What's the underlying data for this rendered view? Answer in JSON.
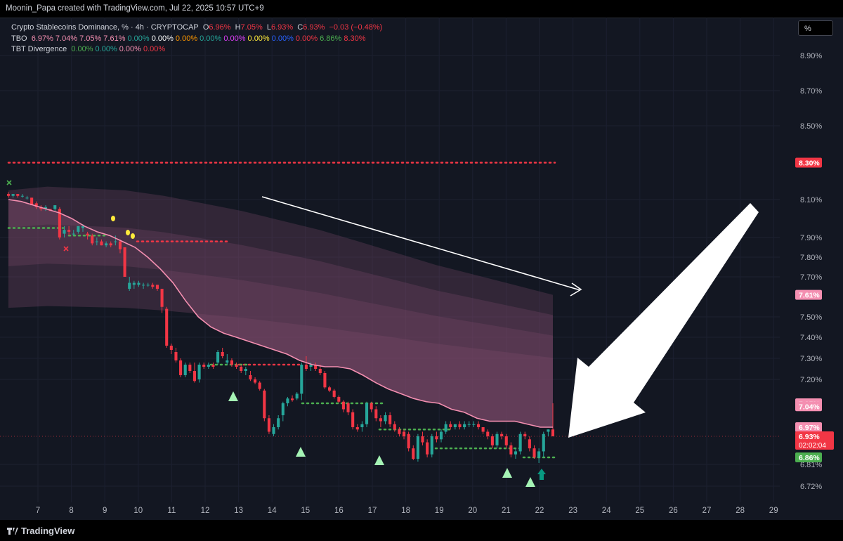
{
  "header": {
    "attribution": "Moonin_Papa created with TradingView.com, Jul 22, 2025 10:57 UTC+9"
  },
  "legend": {
    "symbol": {
      "name": "Crypto Stablecoins Dominance, % · 4h · CRYPTOCAP",
      "o_label": "O",
      "o": "6.96%",
      "h_label": "H",
      "h": "7.05%",
      "l_label": "L",
      "l": "6.93%",
      "c_label": "C",
      "c": "6.93%",
      "change": "−0.03 (−0.48%)"
    },
    "tbo": {
      "name": "TBO",
      "values": [
        {
          "text": "6.97%",
          "color": "#f48fb1"
        },
        {
          "text": "7.04%",
          "color": "#f48fb1"
        },
        {
          "text": "7.05%",
          "color": "#f48fb1"
        },
        {
          "text": "7.61%",
          "color": "#f48fb1"
        },
        {
          "text": "0.00%",
          "color": "#26a69a"
        },
        {
          "text": "0.00%",
          "color": "#ffffff"
        },
        {
          "text": "0.00%",
          "color": "#ff9800"
        },
        {
          "text": "0.00%",
          "color": "#26a69a"
        },
        {
          "text": "0.00%",
          "color": "#e040fb"
        },
        {
          "text": "0.00%",
          "color": "#ffeb3b"
        },
        {
          "text": "0.00%",
          "color": "#2962ff"
        },
        {
          "text": "0.00%",
          "color": "#f23645"
        },
        {
          "text": "6.86%",
          "color": "#4caf50"
        },
        {
          "text": "8.30%",
          "color": "#f23645"
        }
      ]
    },
    "tbt": {
      "name": "TBT Divergence",
      "values": [
        {
          "text": "0.00%",
          "color": "#4caf50"
        },
        {
          "text": "0.00%",
          "color": "#26a69a"
        },
        {
          "text": "0.00%",
          "color": "#f48fb1"
        },
        {
          "text": "0.00%",
          "color": "#f23645"
        }
      ]
    }
  },
  "scale_button": "%",
  "footer": {
    "logo_text": "TradingView"
  },
  "colors": {
    "up": "#26a69a",
    "down": "#f23645",
    "ma": "#f48fb1",
    "cloud": "#7b4a6a",
    "bg": "#131722"
  },
  "chart_data": {
    "type": "candlestick",
    "title": "Crypto Stablecoins Dominance, % · 4h · CRYPTOCAP",
    "y_unit": "%",
    "y_ticks": [
      8.9,
      8.7,
      8.5,
      8.1,
      7.9,
      7.8,
      7.7,
      7.5,
      7.4,
      7.3,
      7.2,
      6.81,
      6.72
    ],
    "x_ticks": [
      "7",
      "8",
      "9",
      "10",
      "11",
      "12",
      "13",
      "14",
      "15",
      "16",
      "17",
      "18",
      "19",
      "20",
      "21",
      "22",
      "23",
      "24",
      "25",
      "26",
      "27",
      "28",
      "29"
    ],
    "ohlc": [
      [
        8.13,
        8.14,
        8.11,
        8.12
      ],
      [
        8.12,
        8.13,
        8.11,
        8.13
      ],
      [
        8.13,
        8.13,
        8.11,
        8.12
      ],
      [
        8.12,
        8.13,
        8.11,
        8.12
      ],
      [
        8.11,
        8.12,
        8.1,
        8.11
      ],
      [
        8.11,
        8.11,
        8.07,
        8.07
      ],
      [
        8.08,
        8.09,
        8.05,
        8.06
      ],
      [
        8.06,
        8.07,
        8.04,
        8.05
      ],
      [
        8.05,
        8.07,
        8.04,
        8.06
      ],
      [
        8.05,
        8.05,
        8.04,
        8.04
      ],
      [
        8.05,
        8.07,
        8.04,
        8.07
      ],
      [
        8.05,
        8.06,
        7.89,
        7.9
      ],
      [
        7.92,
        7.96,
        7.9,
        7.94
      ],
      [
        7.94,
        7.96,
        7.91,
        7.93
      ],
      [
        7.92,
        7.94,
        7.91,
        7.92
      ],
      [
        7.93,
        7.96,
        7.92,
        7.96
      ],
      [
        7.95,
        7.97,
        7.93,
        7.96
      ],
      [
        7.92,
        7.93,
        7.89,
        7.91
      ],
      [
        7.91,
        7.92,
        7.86,
        7.87
      ],
      [
        7.88,
        7.9,
        7.86,
        7.88
      ],
      [
        7.88,
        7.89,
        7.86,
        7.86
      ],
      [
        7.86,
        7.88,
        7.85,
        7.87
      ],
      [
        7.87,
        7.88,
        7.85,
        7.86
      ],
      [
        7.88,
        7.91,
        7.86,
        7.88
      ],
      [
        7.88,
        7.89,
        7.82,
        7.84
      ],
      [
        7.85,
        7.85,
        7.7,
        7.7
      ],
      [
        7.64,
        7.7,
        7.63,
        7.67
      ],
      [
        7.66,
        7.68,
        7.64,
        7.67
      ],
      [
        7.66,
        7.68,
        7.65,
        7.67
      ],
      [
        7.66,
        7.67,
        7.64,
        7.66
      ],
      [
        7.66,
        7.67,
        7.65,
        7.66
      ],
      [
        7.66,
        7.67,
        7.64,
        7.65
      ],
      [
        7.66,
        7.66,
        7.63,
        7.64
      ],
      [
        7.64,
        7.64,
        7.52,
        7.55
      ],
      [
        7.54,
        7.55,
        7.35,
        7.36
      ],
      [
        7.36,
        7.37,
        7.32,
        7.34
      ],
      [
        7.33,
        7.35,
        7.28,
        7.29
      ],
      [
        7.29,
        7.3,
        7.21,
        7.22
      ],
      [
        7.22,
        7.28,
        7.21,
        7.27
      ],
      [
        7.27,
        7.28,
        7.23,
        7.24
      ],
      [
        7.24,
        7.28,
        7.18,
        7.19
      ],
      [
        7.2,
        7.28,
        7.18,
        7.27
      ],
      [
        7.27,
        7.28,
        7.25,
        7.26
      ],
      [
        7.26,
        7.28,
        7.25,
        7.27
      ],
      [
        7.27,
        7.28,
        7.25,
        7.26
      ],
      [
        7.28,
        7.34,
        7.27,
        7.33
      ],
      [
        7.33,
        7.35,
        7.3,
        7.31
      ],
      [
        7.28,
        7.32,
        7.27,
        7.29
      ],
      [
        7.29,
        7.3,
        7.26,
        7.27
      ],
      [
        7.27,
        7.28,
        7.25,
        7.26
      ],
      [
        7.26,
        7.27,
        7.23,
        7.24
      ],
      [
        7.24,
        7.26,
        7.22,
        7.25
      ],
      [
        7.22,
        7.24,
        7.19,
        7.2
      ],
      [
        7.2,
        7.21,
        7.17,
        7.18
      ],
      [
        7.18,
        7.19,
        7.13,
        7.14
      ],
      [
        7.13,
        7.14,
        6.99,
        7.0
      ],
      [
        7.0,
        7.01,
        6.94,
        6.95
      ],
      [
        6.94,
        6.98,
        6.93,
        6.97
      ],
      [
        6.97,
        7.01,
        6.96,
        7.0
      ],
      [
        7.01,
        7.06,
        6.99,
        7.05
      ],
      [
        7.05,
        7.09,
        7.04,
        7.08
      ],
      [
        7.08,
        7.1,
        7.06,
        7.07
      ],
      [
        7.08,
        7.12,
        7.07,
        7.11
      ],
      [
        7.11,
        7.28,
        7.07,
        7.27
      ],
      [
        7.27,
        7.31,
        7.24,
        7.25
      ],
      [
        7.26,
        7.28,
        7.24,
        7.27
      ],
      [
        7.27,
        7.28,
        7.24,
        7.25
      ],
      [
        7.25,
        7.27,
        7.22,
        7.23
      ],
      [
        7.23,
        7.24,
        7.14,
        7.15
      ],
      [
        7.15,
        7.16,
        7.12,
        7.13
      ],
      [
        7.13,
        7.14,
        7.08,
        7.09
      ],
      [
        7.09,
        7.1,
        7.05,
        7.06
      ],
      [
        7.06,
        7.07,
        7.02,
        7.03
      ],
      [
        7.05,
        7.06,
        7.01,
        7.02
      ],
      [
        7.02,
        7.03,
        6.96,
        6.97
      ],
      [
        6.97,
        6.98,
        6.95,
        6.96
      ],
      [
        6.97,
        6.99,
        6.95,
        6.98
      ],
      [
        6.98,
        7.06,
        6.97,
        7.05
      ],
      [
        7.05,
        7.06,
        7.02,
        7.03
      ],
      [
        7.03,
        7.04,
        6.99,
        7.0
      ],
      [
        7.0,
        7.01,
        6.97,
        6.99
      ],
      [
        6.99,
        7.02,
        6.98,
        7.01
      ],
      [
        7.01,
        7.02,
        6.97,
        6.98
      ],
      [
        6.98,
        6.99,
        6.95,
        6.96
      ],
      [
        6.96,
        6.97,
        6.93,
        6.94
      ],
      [
        6.95,
        6.96,
        6.92,
        6.93
      ],
      [
        6.94,
        6.95,
        6.88,
        6.89
      ],
      [
        6.89,
        6.9,
        6.84,
        6.85
      ],
      [
        6.85,
        6.94,
        6.83,
        6.93
      ],
      [
        6.93,
        6.95,
        6.9,
        6.91
      ],
      [
        6.91,
        6.92,
        6.86,
        6.87
      ],
      [
        6.87,
        6.94,
        6.86,
        6.93
      ],
      [
        6.93,
        6.95,
        6.91,
        6.92
      ],
      [
        6.92,
        6.96,
        6.91,
        6.95
      ],
      [
        6.95,
        6.99,
        6.94,
        6.98
      ],
      [
        6.98,
        6.99,
        6.96,
        6.97
      ],
      [
        6.97,
        6.98,
        6.96,
        6.98
      ],
      [
        6.98,
        6.99,
        6.96,
        6.97
      ],
      [
        6.97,
        6.99,
        6.96,
        6.98
      ],
      [
        6.98,
        6.99,
        6.97,
        6.98
      ],
      [
        6.98,
        6.99,
        6.97,
        6.98
      ],
      [
        6.98,
        6.99,
        6.96,
        6.97
      ],
      [
        6.97,
        6.97,
        6.94,
        6.95
      ],
      [
        6.95,
        6.96,
        6.92,
        6.93
      ],
      [
        6.93,
        6.94,
        6.89,
        6.9
      ],
      [
        6.9,
        6.95,
        6.89,
        6.94
      ],
      [
        6.94,
        6.95,
        6.92,
        6.93
      ],
      [
        6.93,
        6.94,
        6.89,
        6.9
      ],
      [
        6.9,
        6.91,
        6.86,
        6.87
      ],
      [
        6.87,
        6.89,
        6.85,
        6.88
      ],
      [
        6.88,
        6.95,
        6.87,
        6.94
      ],
      [
        6.94,
        6.95,
        6.92,
        6.93
      ],
      [
        6.92,
        6.93,
        6.88,
        6.89
      ],
      [
        6.89,
        6.9,
        6.85,
        6.86
      ],
      [
        6.86,
        6.89,
        6.82,
        6.88
      ],
      [
        6.88,
        6.95,
        6.86,
        6.94
      ],
      [
        6.95,
        6.96,
        6.93,
        6.96
      ],
      [
        6.96,
        7.05,
        6.93,
        6.93
      ]
    ],
    "ma_values": [
      8.1,
      8.09,
      8.07,
      8.05,
      8.03,
      8.0,
      7.96,
      7.93,
      7.91,
      7.88,
      7.85,
      7.8,
      7.74,
      7.67,
      7.58,
      7.5,
      7.45,
      7.42,
      7.4,
      7.38,
      7.36,
      7.34,
      7.32,
      7.29,
      7.27,
      7.26,
      7.26,
      7.25,
      7.22,
      7.18,
      7.14,
      7.11,
      7.08,
      7.06,
      7.05,
      7.03,
      7.02,
      7.0,
      6.99,
      6.99,
      6.99,
      6.98,
      6.97,
      6.97
    ],
    "cloud_top": [
      8.15,
      8.17,
      8.16,
      8.15,
      8.12,
      8.08,
      8.04,
      7.99,
      7.94,
      7.88,
      7.82,
      7.76,
      7.71,
      7.66,
      7.61
    ],
    "levels": [
      {
        "value": 8.3,
        "label": "8.30%",
        "style": "dotted-red"
      },
      {
        "value": 7.88,
        "label": "",
        "style": "dotted-red"
      },
      {
        "value": 7.27,
        "label": "",
        "style": "dotted-red"
      },
      {
        "value": 7.27,
        "label": "",
        "style": "dotted-green"
      },
      {
        "value": 7.05,
        "label": "",
        "style": "dotted-green"
      },
      {
        "value": 6.96,
        "label": "",
        "style": "dotted-green"
      },
      {
        "value": 6.89,
        "label": "",
        "style": "dotted-green"
      },
      {
        "value": 6.86,
        "label": "",
        "style": "dotted-green"
      }
    ],
    "price_labels": [
      {
        "value": 8.3,
        "text": "8.30%",
        "color": "#f23645"
      },
      {
        "value": 7.61,
        "text": "7.61%",
        "color": "#f48fb1"
      },
      {
        "value": 7.05,
        "text": "7.05%",
        "color": "#f48fb1"
      },
      {
        "value": 7.04,
        "text": "7.04%",
        "color": "#f48fb1"
      },
      {
        "value": 6.97,
        "text": "6.97%",
        "color": "#f48fb1"
      },
      {
        "value": 6.93,
        "text": "6.93%",
        "color": "#f23645",
        "sub": "02:02:04"
      },
      {
        "value": 6.86,
        "text": "6.86%",
        "color": "#4caf50"
      }
    ]
  }
}
